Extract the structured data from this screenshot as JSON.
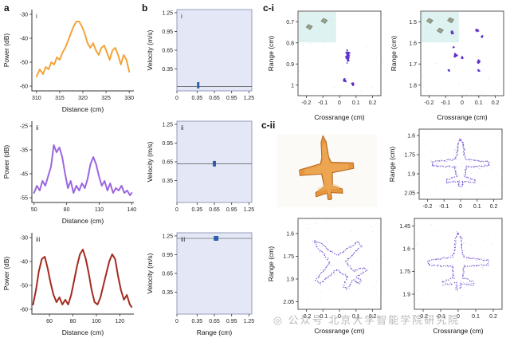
{
  "panel_labels": {
    "a": "a",
    "b": "b",
    "ci": "c-i",
    "cii": "c-ii"
  },
  "watermark": "公众号 北京大学智能学院研究院",
  "colors": {
    "photo_plane": "#E6953F",
    "photo_plane_edge": "#B5681C",
    "photo_plane_hi": "#F4B768"
  },
  "plane_outline": [
    [
      0,
      -1
    ],
    [
      0.08,
      -0.82
    ],
    [
      0.11,
      -0.38
    ],
    [
      0.17,
      -0.22
    ],
    [
      0.85,
      -0.12
    ],
    [
      0.85,
      0.04
    ],
    [
      0.17,
      0.08
    ],
    [
      0.13,
      0.46
    ],
    [
      0.42,
      0.58
    ],
    [
      0.42,
      0.7
    ],
    [
      0.06,
      0.64
    ],
    [
      0.06,
      0.82
    ],
    [
      0,
      0.84
    ]
  ],
  "chart_data": [
    {
      "id": "a1",
      "type": "line",
      "title": "i",
      "xlabel": "Distance (cm)",
      "ylabel": "Power (dB)",
      "xlim": [
        309,
        331
      ],
      "ylim": [
        -62,
        -28
      ],
      "xticks": [
        310,
        315,
        320,
        325,
        330
      ],
      "yticks": [
        -30,
        -40,
        -50,
        -60
      ],
      "color": "#F2A43A",
      "x": [
        310,
        310.7,
        311.4,
        312,
        312.6,
        313.2,
        313.8,
        314.4,
        315,
        315.6,
        316.2,
        316.8,
        317.4,
        318,
        318.6,
        319.2,
        319.8,
        320.4,
        321,
        321.6,
        322.2,
        322.8,
        323.4,
        324,
        324.6,
        325.2,
        325.8,
        326.4,
        327,
        327.6,
        328.2,
        328.8,
        329.4,
        330
      ],
      "y": [
        -56,
        -53,
        -55,
        -52,
        -53,
        -50,
        -51,
        -48,
        -49,
        -46,
        -44,
        -41,
        -38,
        -35,
        -33,
        -33,
        -35,
        -38,
        -42,
        -44,
        -42,
        -45,
        -47,
        -44,
        -43,
        -46,
        -49,
        -45,
        -44,
        -47,
        -51,
        -47,
        -49,
        -54
      ]
    },
    {
      "id": "a2",
      "type": "line",
      "title": "ii",
      "xlabel": "Distance (cm)",
      "ylabel": "Power (dB)",
      "xlim": [
        48,
        142
      ],
      "ylim": [
        -57,
        -23
      ],
      "xticks": [
        50,
        80,
        110,
        140
      ],
      "yticks": [
        -25,
        -35,
        -45,
        -55
      ],
      "color": "#9A66E0",
      "x": [
        50,
        52.6,
        55.2,
        57.8,
        60.4,
        63,
        65.6,
        68.2,
        70.8,
        73.4,
        76,
        78.6,
        81.2,
        83.8,
        86.4,
        89,
        91.6,
        94.2,
        96.8,
        99.4,
        102,
        104.6,
        107.2,
        109.8,
        112.4,
        115,
        117.6,
        120.2,
        122.8,
        125.4,
        128,
        130.6,
        133.2,
        135.8,
        138.4,
        140
      ],
      "y": [
        -53,
        -50,
        -52,
        -48,
        -50,
        -46,
        -42,
        -33,
        -36,
        -34,
        -38,
        -45,
        -51,
        -48,
        -53,
        -50,
        -52,
        -49,
        -51,
        -47,
        -41,
        -38,
        -41,
        -46,
        -50,
        -48,
        -52,
        -49,
        -53,
        -51,
        -52,
        -50,
        -53,
        -52,
        -54,
        -53
      ]
    },
    {
      "id": "a3",
      "type": "line",
      "title": "iii",
      "xlabel": "Distance (cm)",
      "ylabel": "Power (dB)",
      "xlim": [
        45,
        132
      ],
      "ylim": [
        -62,
        -28
      ],
      "xticks": [
        60,
        80,
        100,
        120
      ],
      "yticks": [
        -30,
        -40,
        -50,
        -60
      ],
      "color": "#A42A1E",
      "x": [
        46,
        48.5,
        51,
        53.5,
        56,
        58.5,
        61,
        63.5,
        66,
        68.5,
        71,
        73.5,
        76,
        78.5,
        81,
        83.5,
        86,
        88.5,
        91,
        93.5,
        96,
        98.5,
        101,
        103.5,
        106,
        108.5,
        111,
        113.5,
        116,
        118.5,
        121,
        123.5,
        126,
        128.5,
        130
      ],
      "y": [
        -58,
        -52,
        -44,
        -39,
        -38,
        -43,
        -49,
        -54,
        -57,
        -55,
        -58,
        -56,
        -58,
        -54,
        -48,
        -42,
        -37,
        -35,
        -39,
        -45,
        -52,
        -57,
        -58,
        -55,
        -50,
        -45,
        -40,
        -37,
        -39,
        -46,
        -52,
        -56,
        -54,
        -58,
        -59
      ]
    },
    {
      "id": "b1",
      "type": "pointmap",
      "title": "i",
      "xlabel": "",
      "ylabel": "Velocity (m/s)",
      "xlim": [
        0,
        1.3
      ],
      "ylim": [
        0,
        1.3
      ],
      "xticks": [
        0,
        0.35,
        0.65,
        0.95,
        1.25
      ],
      "yticks": [
        0.35,
        0.65,
        0.95,
        1.25
      ],
      "bg": "#E4E8F6",
      "line_y": 0.07,
      "marker": {
        "x": 0.37,
        "y": 0.09,
        "w": 3,
        "h": 8
      },
      "color": "#2E5FAE"
    },
    {
      "id": "b2",
      "type": "pointmap",
      "title": "ii",
      "xlabel": "",
      "ylabel": "Velocity (m/s)",
      "xlim": [
        0,
        1.3
      ],
      "ylim": [
        0,
        1.3
      ],
      "xticks": [
        0,
        0.35,
        0.65,
        0.95,
        1.25
      ],
      "yticks": [
        0.35,
        0.65,
        0.95,
        1.25
      ],
      "bg": "#E4E8F6",
      "line_y": 0.62,
      "marker": {
        "x": 0.65,
        "y": 0.62,
        "w": 4,
        "h": 7
      },
      "color": "#2E5FAE"
    },
    {
      "id": "b3",
      "type": "pointmap",
      "title": "iii",
      "xlabel": "Range (cm)",
      "ylabel": "Velocity (m/s)",
      "xlim": [
        0,
        1.3
      ],
      "ylim": [
        0,
        1.3
      ],
      "xticks": [
        0,
        0.35,
        0.65,
        0.95,
        1.25
      ],
      "yticks": [
        0.35,
        0.65,
        0.95,
        1.25
      ],
      "bg": "#E4E8F6",
      "line_y": 1.21,
      "marker": {
        "x": 0.68,
        "y": 1.21,
        "w": 6,
        "h": 6
      },
      "color": "#2E5FAE"
    },
    {
      "id": "ci1",
      "type": "scatter",
      "xlabel": "Crossrange (cm)",
      "ylabel": "Range (cm)",
      "xlim": [
        -0.25,
        0.25
      ],
      "ylim": [
        0.65,
        1.05
      ],
      "invert_y": true,
      "xticks": [
        -0.2,
        -0.1,
        0,
        0.1,
        0.2
      ],
      "yticks": [
        0.7,
        0.8,
        0.9,
        1
      ],
      "color": "#5A2EC8",
      "noise": 12,
      "inset_objects": [
        [
          0.28,
          0.5
        ],
        [
          0.68,
          0.3
        ]
      ],
      "clusters": [
        {
          "x": 0.05,
          "y": 0.86,
          "rx": 0.013,
          "ry": 0.028,
          "n": 60
        },
        {
          "x": 0.03,
          "y": 0.975,
          "rx": 0.01,
          "ry": 0.011,
          "n": 26
        },
        {
          "x": 0.08,
          "y": 0.995,
          "rx": 0.008,
          "ry": 0.009,
          "n": 20
        }
      ]
    },
    {
      "id": "ci2",
      "type": "scatter",
      "xlabel": "Crossrange (cm)",
      "ylabel": "Range (cm)",
      "xlim": [
        -0.25,
        0.25
      ],
      "ylim": [
        1.45,
        1.85
      ],
      "invert_y": true,
      "xticks": [
        -0.2,
        -0.1,
        0,
        0.1,
        0.2
      ],
      "yticks": [
        1.5,
        1.6,
        1.7,
        1.8
      ],
      "color": "#5A2EC8",
      "noise": 12,
      "inset_objects": [
        [
          0.22,
          0.3
        ],
        [
          0.5,
          0.62
        ],
        [
          0.78,
          0.28
        ]
      ],
      "clusters": [
        {
          "x": -0.06,
          "y": 1.55,
          "rx": 0.009,
          "ry": 0.007,
          "n": 16
        },
        {
          "x": 0.09,
          "y": 1.54,
          "rx": 0.011,
          "ry": 0.007,
          "n": 20
        },
        {
          "x": 0.12,
          "y": 1.57,
          "rx": 0.007,
          "ry": 0.005,
          "n": 10
        },
        {
          "x": -0.05,
          "y": 1.62,
          "rx": 0.005,
          "ry": 0.004,
          "n": 7
        },
        {
          "x": -0.04,
          "y": 1.66,
          "rx": 0.011,
          "ry": 0.011,
          "n": 24
        },
        {
          "x": 0,
          "y": 1.67,
          "rx": 0.005,
          "ry": 0.005,
          "n": 8
        },
        {
          "x": 0.1,
          "y": 1.69,
          "rx": 0.009,
          "ry": 0.011,
          "n": 20
        },
        {
          "x": 0.1,
          "y": 1.73,
          "rx": 0.006,
          "ry": 0.005,
          "n": 9
        },
        {
          "x": -0.08,
          "y": 1.73,
          "rx": 0.005,
          "ry": 0.004,
          "n": 7
        }
      ]
    },
    {
      "id": "cii1",
      "type": "plane",
      "xlabel": "",
      "ylabel": "Range (cm)",
      "xlim": [
        -0.25,
        0.25
      ],
      "ylim": [
        1.55,
        2.1
      ],
      "invert_y": true,
      "xticks": [
        -0.2,
        -0.1,
        0,
        0.1,
        0.2
      ],
      "yticks": [
        1.6,
        1.75,
        1.9,
        2.05
      ],
      "rotation": 0,
      "center": [
        0,
        1.83
      ],
      "scale": [
        0.2,
        0.2
      ],
      "color": "#5A2EC8",
      "noise": 40
    },
    {
      "id": "cii2",
      "type": "plane",
      "xlabel": "Crossrange (cm)",
      "ylabel": "Range (cm)",
      "xlim": [
        -0.25,
        0.25
      ],
      "ylim": [
        1.5,
        2.1
      ],
      "invert_y": true,
      "xticks": [
        -0.2,
        -0.1,
        0,
        0.1,
        0.2
      ],
      "yticks": [
        1.6,
        1.75,
        1.9,
        2.05
      ],
      "rotation": -45,
      "center": [
        0,
        1.8
      ],
      "scale": [
        0.21,
        0.21
      ],
      "color": "#5A2EC8",
      "noise": 60
    },
    {
      "id": "cii3",
      "type": "plane",
      "xlabel": "Crossrange (cm)",
      "ylabel": "",
      "xlim": [
        -0.25,
        0.25
      ],
      "ylim": [
        1.4,
        2.0
      ],
      "invert_y": true,
      "xticks": [
        -0.2,
        -0.1,
        0,
        0.1,
        0.2
      ],
      "yticks": [
        1.45,
        1.6,
        1.75,
        1.9
      ],
      "rotation": 0,
      "center": [
        0,
        1.7
      ],
      "scale": [
        0.2,
        0.2
      ],
      "color": "#5A2EC8",
      "noise": 40
    }
  ]
}
